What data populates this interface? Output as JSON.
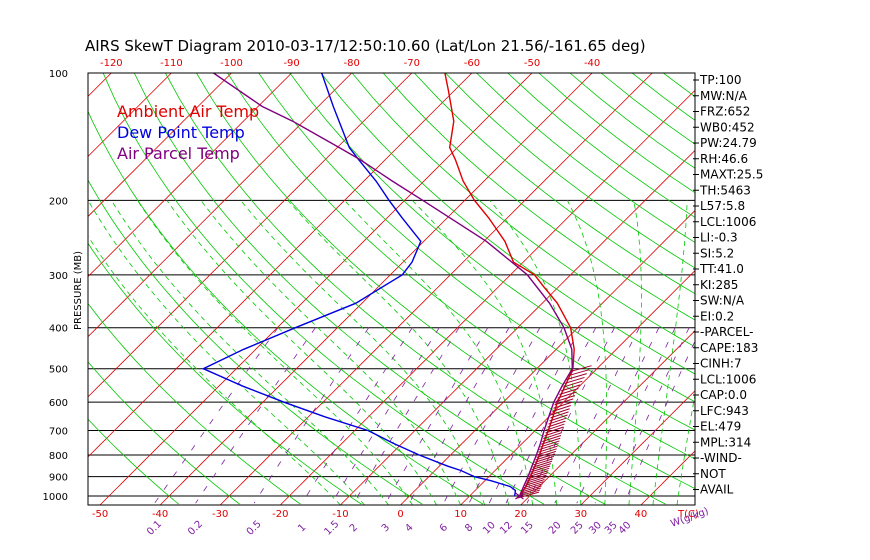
{
  "chart_data": {
    "type": "line",
    "title": "AIRS SkewT Diagram 2010-03-17/12:50:10.60 (Lat/Lon 21.56/-161.65 deg)",
    "ylabel": "PRESSURE (MB)",
    "xlabel": "T(C)",
    "mixing_ratio_label": "W(g/kg)",
    "pressure_ticks": [
      "100",
      "200",
      "300",
      "400",
      "500",
      "600",
      "700",
      "800",
      "900",
      "1000"
    ],
    "top_temp_ticks": [
      "-120",
      "-110",
      "-100",
      "-90",
      "-80",
      "-70",
      "-60",
      "-50",
      "-40"
    ],
    "bottom_temp_ticks": [
      "-50",
      "-40",
      "-30",
      "-20",
      "-10",
      "0",
      "10",
      "20",
      "30",
      "40"
    ],
    "mixing_ratio_ticks": [
      "0.1",
      "0.2",
      "0.5",
      "1",
      "1.5",
      "2",
      "3",
      "4",
      "6",
      "8",
      "10",
      "12",
      "15",
      "20",
      "25",
      "30",
      "35",
      "40"
    ],
    "legend": [
      {
        "label": "Ambient Air Temp",
        "color": "#e00000"
      },
      {
        "label": "Dew Point Temp",
        "color": "#0000e0"
      },
      {
        "label": "Air Parcel Temp",
        "color": "#800080"
      }
    ],
    "temp_range_bottom": [
      -52,
      49
    ],
    "pressure_range": [
      100,
      1050
    ],
    "series": [
      {
        "name": "Ambient Air Temp",
        "color": "#e00000",
        "points": [
          [
            1000,
            18.3
          ],
          [
            950,
            17.8
          ],
          [
            900,
            16.9
          ],
          [
            850,
            15.9
          ],
          [
            800,
            14.8
          ],
          [
            750,
            13.5
          ],
          [
            700,
            12.2
          ],
          [
            650,
            10.7
          ],
          [
            600,
            9.0
          ],
          [
            550,
            7.6
          ],
          [
            500,
            6.0
          ],
          [
            450,
            3.0
          ],
          [
            400,
            -1.2
          ],
          [
            350,
            -7.5
          ],
          [
            320,
            -12.5
          ],
          [
            300,
            -16.0
          ],
          [
            280,
            -21.6
          ],
          [
            250,
            -26.5
          ],
          [
            220,
            -33.1
          ],
          [
            200,
            -38.4
          ],
          [
            180,
            -43.5
          ],
          [
            160,
            -48.4
          ],
          [
            150,
            -51.3
          ],
          [
            130,
            -55.0
          ],
          [
            110,
            -61.0
          ],
          [
            100,
            -64.5
          ]
        ]
      },
      {
        "name": "Dew Point Temp",
        "color": "#0000e0",
        "points": [
          [
            1000,
            17.5
          ],
          [
            970,
            16.7
          ],
          [
            950,
            15.2
          ],
          [
            920,
            11.0
          ],
          [
            900,
            7.6
          ],
          [
            870,
            4.3
          ],
          [
            850,
            1.4
          ],
          [
            800,
            -5.2
          ],
          [
            750,
            -11.5
          ],
          [
            700,
            -17.8
          ],
          [
            650,
            -27.2
          ],
          [
            600,
            -36.5
          ],
          [
            550,
            -46.0
          ],
          [
            500,
            -55.5
          ],
          [
            450,
            -52.0
          ],
          [
            400,
            -47.0
          ],
          [
            350,
            -41.0
          ],
          [
            300,
            -38.0
          ],
          [
            280,
            -38.5
          ],
          [
            250,
            -40.5
          ],
          [
            220,
            -47.5
          ],
          [
            200,
            -52.6
          ],
          [
            180,
            -58.0
          ],
          [
            160,
            -64.5
          ],
          [
            150,
            -68.0
          ],
          [
            120,
            -77.5
          ],
          [
            100,
            -85.0
          ]
        ]
      },
      {
        "name": "Air Parcel Temp",
        "color": "#800080",
        "points": [
          [
            1000,
            18.3
          ],
          [
            950,
            17.4
          ],
          [
            900,
            16.5
          ],
          [
            850,
            15.4
          ],
          [
            800,
            14.3
          ],
          [
            750,
            13.0
          ],
          [
            700,
            11.5
          ],
          [
            650,
            10.0
          ],
          [
            600,
            8.4
          ],
          [
            550,
            7.1
          ],
          [
            500,
            5.9
          ],
          [
            450,
            2.6
          ],
          [
            400,
            -2.3
          ],
          [
            350,
            -8.8
          ],
          [
            300,
            -17.2
          ],
          [
            250,
            -29.6
          ],
          [
            200,
            -47.0
          ],
          [
            180,
            -55.3
          ],
          [
            160,
            -64.3
          ],
          [
            150,
            -69.7
          ],
          [
            130,
            -81.8
          ],
          [
            120,
            -89.3
          ],
          [
            100,
            -103.0
          ]
        ]
      }
    ]
  },
  "stats": [
    "TP:100",
    "MW:N/A",
    "FRZ:652",
    "WB0:452",
    "PW:24.79",
    "RH:46.6",
    "MAXT:25.5",
    "TH:5463",
    "L57:5.8",
    "LCL:1006",
    "LI:-0.3",
    "SI:5.2",
    "TT:41.0",
    "KI:285",
    "SW:N/A",
    "EI:0.2",
    "-PARCEL-",
    "CAPE:183",
    "CINH:7",
    "LCL:1006",
    "CAP:0.0",
    "LFC:943",
    "EL:479",
    "MPL:314",
    "-WIND-",
    "NOT",
    "AVAIL"
  ],
  "colors": {
    "isotherm": "#e00000",
    "dry_adiabat": "#00c800",
    "moist_adiabat": "#00c800",
    "mixing_ratio": "#8020a0",
    "isobar": "#000000"
  }
}
